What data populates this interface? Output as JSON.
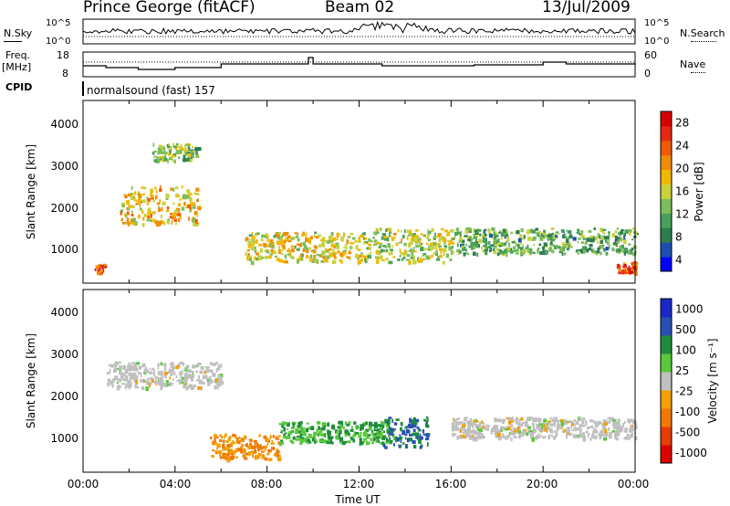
{
  "header": {
    "station": "Prince George (fitACF)",
    "beam": "Beam 02",
    "date": "13/Jul/2009"
  },
  "strip": {
    "nsky_label": "N.Sky",
    "nsearch_label": "N.Search",
    "freq_label_top": "Freq.",
    "freq_label_unit": "[MHz]",
    "nave_label": "Nave",
    "cpid_label": "CPID",
    "cpid_text": "normalsound (fast) 157",
    "noise_ticks": [
      "10^5",
      "10^0"
    ],
    "freq_ticks": [
      "18",
      "8"
    ],
    "nave_ticks": [
      "60",
      "0"
    ]
  },
  "power_panel": {
    "ylabel": "Slant Range [km]",
    "yticks": [
      "4000",
      "3000",
      "2000",
      "1000"
    ],
    "colorbar_label": "Power [dB]",
    "colorbar_ticks": [
      "28",
      "24",
      "20",
      "16",
      "12",
      "8",
      "4"
    ],
    "colors": [
      "#0000ff",
      "#1a4fb0",
      "#2e7d4f",
      "#4aa05a",
      "#7dbe5a",
      "#c8d23c",
      "#f0b800",
      "#f08c00",
      "#f05a00",
      "#e62814",
      "#d70000"
    ]
  },
  "velocity_panel": {
    "ylabel": "Slant Range [km]",
    "yticks": [
      "4000",
      "3000",
      "2000",
      "1000"
    ],
    "colorbar_label": "Velocity [m s⁻¹]",
    "colorbar_ticks": [
      "1000",
      "500",
      "100",
      "25",
      "-25",
      "-100",
      "-500",
      "-1000"
    ],
    "colors": [
      "#1a28c8",
      "#2850b4",
      "#1e8c3c",
      "#5ac83c",
      "#c0c0c0",
      "#f0a000",
      "#f07800",
      "#e63c00",
      "#dc0000"
    ]
  },
  "time_axis": {
    "xlabel": "Time UT",
    "ticks": [
      "00:00",
      "04:00",
      "08:00",
      "12:00",
      "16:00",
      "20:00",
      "00:00"
    ]
  },
  "chart_data": {
    "type": "heatmap",
    "title": "Prince George (fitACF)   Beam 02   13/Jul/2009",
    "xlabel": "Time UT",
    "ylabel": "Slant Range [km]",
    "xlim": [
      "00:00",
      "24:00"
    ],
    "ylim": [
      180,
      4500
    ],
    "power_regions": [
      {
        "t_start": 1.6,
        "t_end": 5.0,
        "range_start": 1600,
        "range_end": 2500,
        "power_db": 18
      },
      {
        "t_start": 3.0,
        "t_end": 5.0,
        "range_start": 3100,
        "range_end": 3500,
        "power_db": 12
      },
      {
        "t_start": 7.0,
        "t_end": 12.0,
        "range_start": 700,
        "range_end": 1400,
        "power_db": 16
      },
      {
        "t_start": 12.0,
        "t_end": 16.0,
        "range_start": 700,
        "range_end": 1500,
        "power_db": 14
      },
      {
        "t_start": 0.5,
        "t_end": 0.9,
        "range_start": 450,
        "range_end": 650,
        "power_db": 26
      },
      {
        "t_start": 16.0,
        "t_end": 24.0,
        "range_start": 900,
        "range_end": 1500,
        "power_db": 10
      },
      {
        "t_start": 23.2,
        "t_end": 24.0,
        "range_start": 450,
        "range_end": 700,
        "power_db": 24
      }
    ],
    "velocity_regions": [
      {
        "t_start": 1.0,
        "t_end": 6.0,
        "range_start": 2200,
        "range_end": 2800,
        "velocity": 0
      },
      {
        "t_start": 5.5,
        "t_end": 8.5,
        "range_start": 500,
        "range_end": 1100,
        "velocity": -100
      },
      {
        "t_start": 8.5,
        "t_end": 13.5,
        "range_start": 900,
        "range_end": 1400,
        "velocity": 100
      },
      {
        "t_start": 13.0,
        "t_end": 15.0,
        "range_start": 800,
        "range_end": 1500,
        "velocity": 500
      },
      {
        "t_start": 16.0,
        "t_end": 24.0,
        "range_start": 1000,
        "range_end": 1500,
        "velocity": 0
      }
    ]
  }
}
